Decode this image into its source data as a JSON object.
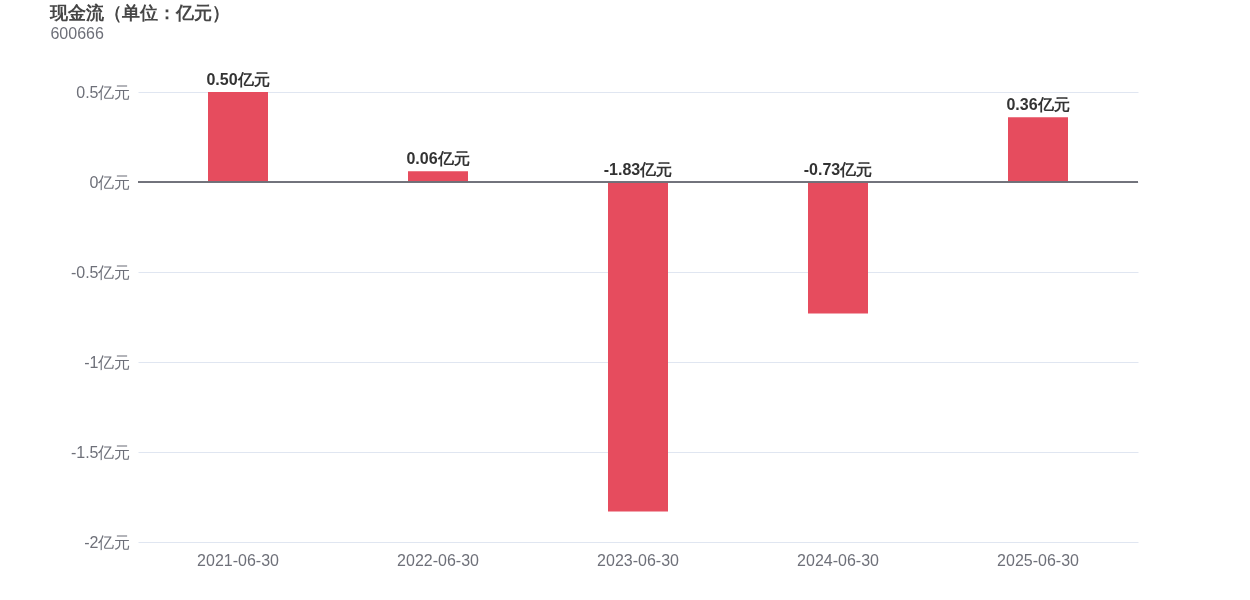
{
  "chart_data": {
    "type": "bar",
    "title": "现金流（单位：亿元）",
    "subtitle": "600666",
    "categories": [
      "2021-06-30",
      "2022-06-30",
      "2023-06-30",
      "2024-06-30",
      "2025-06-30"
    ],
    "values": [
      0.5,
      0.06,
      -1.83,
      -0.73,
      0.36
    ],
    "value_labels": [
      "0.50亿元",
      "0.06亿元",
      "-1.83亿元",
      "-0.73亿元",
      "0.36亿元"
    ],
    "color": "#e64c5e",
    "ylim": [
      -2,
      0.5
    ],
    "yticks": [
      {
        "value": -2,
        "label": "-2亿元"
      },
      {
        "value": -1.5,
        "label": "-1.5亿元"
      },
      {
        "value": -1,
        "label": "-1亿元"
      },
      {
        "value": -0.5,
        "label": "-0.5亿元"
      },
      {
        "value": 0,
        "label": "0亿元"
      },
      {
        "value": 0.5,
        "label": "0.5亿元"
      }
    ],
    "grid": "y"
  }
}
